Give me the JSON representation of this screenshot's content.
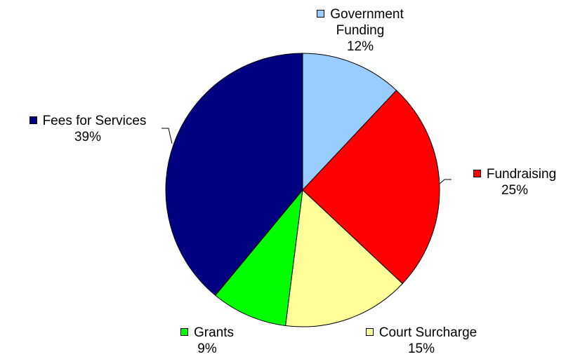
{
  "chart_data": {
    "type": "pie",
    "title": "",
    "legend": "none",
    "slices": [
      {
        "name": "Government Funding",
        "name_lines": [
          "Government",
          "Funding"
        ],
        "value": 12,
        "value_label": "12%",
        "color": "#99CCFF"
      },
      {
        "name": "Fundraising",
        "name_lines": [
          "Fundraising"
        ],
        "value": 25,
        "value_label": "25%",
        "color": "#FF0000"
      },
      {
        "name": "Court Surcharge",
        "name_lines": [
          "Court Surcharge"
        ],
        "value": 15,
        "value_label": "15%",
        "color": "#FFFF99"
      },
      {
        "name": "Grants",
        "name_lines": [
          "Grants"
        ],
        "value": 9,
        "value_label": "9%",
        "color": "#00FF00"
      },
      {
        "name": "Fees for Services",
        "name_lines": [
          "Fees for Services"
        ],
        "value": 39,
        "value_label": "39%",
        "color": "#000080"
      }
    ]
  }
}
